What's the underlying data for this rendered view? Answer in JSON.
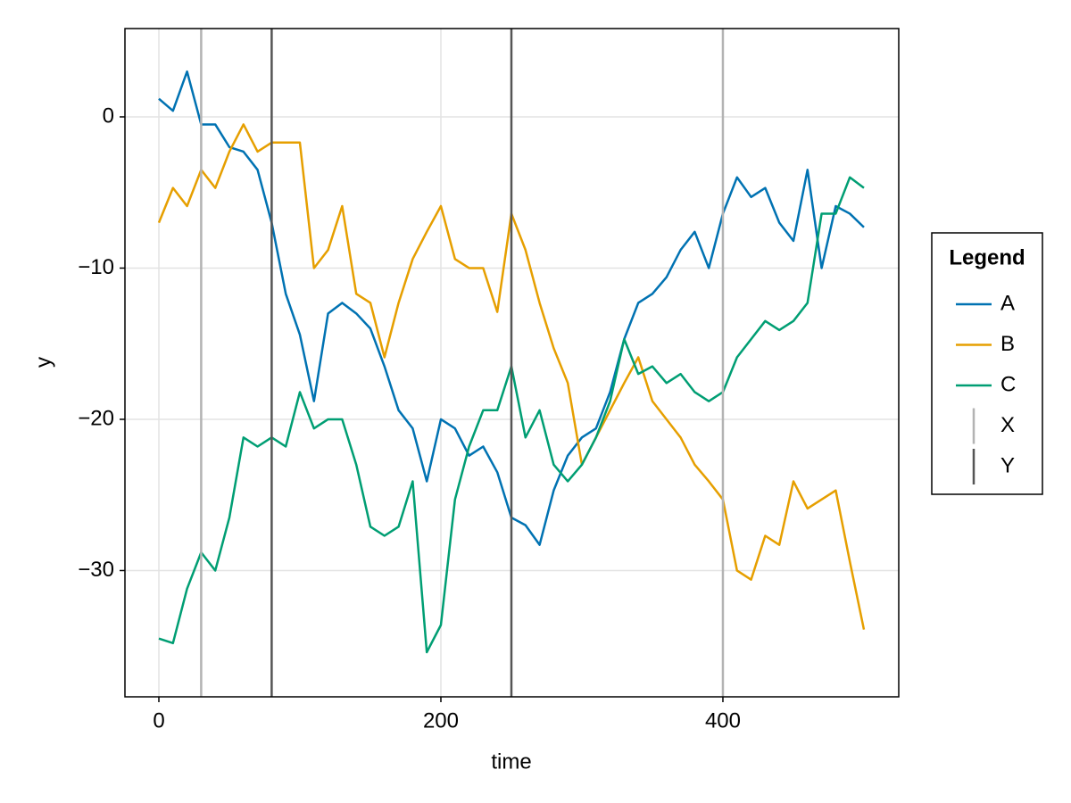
{
  "chart_data": {
    "type": "line",
    "xlabel": "time",
    "ylabel": "y",
    "legend_title": "Legend",
    "legend": "right",
    "grid": true,
    "xlim": [
      -24.05,
      524.7
    ],
    "ylim": [
      -38.35,
      5.84
    ],
    "xticks": [
      0,
      200,
      400
    ],
    "yticks": [
      {
        "value": -30,
        "label": "−30"
      },
      {
        "value": -20,
        "label": "−20"
      },
      {
        "value": -10,
        "label": "−10"
      },
      0
    ],
    "x": [
      0,
      10,
      20,
      30,
      40,
      50,
      60,
      70,
      80,
      90,
      100,
      110,
      120,
      130,
      140,
      150,
      160,
      170,
      180,
      190,
      200,
      210,
      220,
      230,
      240,
      250,
      260,
      270,
      280,
      290,
      300,
      310,
      320,
      330,
      340,
      350,
      360,
      370,
      380,
      390,
      400,
      410,
      420,
      430,
      440,
      450,
      460,
      470,
      480,
      490,
      500
    ],
    "series": [
      {
        "name": "A",
        "color": "#0072b2",
        "values": [
          1.2,
          0.4,
          3,
          -0.5,
          -0.5,
          -2,
          -2.3,
          -3.5,
          -7,
          -11.7,
          -14.4,
          -18.8,
          -13,
          -12.3,
          -13,
          -14,
          -16.5,
          -19.4,
          -20.6,
          -24.1,
          -20,
          -20.6,
          -22.4,
          -21.8,
          -23.5,
          -26.5,
          -27,
          -28.3,
          -24.7,
          -22.4,
          -21.2,
          -20.6,
          -18.2,
          -14.7,
          -12.3,
          -11.7,
          -10.6,
          -8.8,
          -7.6,
          -10,
          -6.4,
          -4,
          -5.3,
          -4.7,
          -7,
          -8.2,
          -3.5,
          -10,
          -5.9,
          -6.4,
          -7.3
        ]
      },
      {
        "name": "B",
        "color": "#e69f00",
        "values": [
          -7,
          -4.7,
          -5.9,
          -3.5,
          -4.7,
          -2.3,
          -0.5,
          -2.3,
          -1.7,
          -1.7,
          -1.7,
          -10,
          -8.8,
          -5.9,
          -11.7,
          -12.3,
          -15.9,
          -12.3,
          -9.4,
          -7.6,
          -5.9,
          -9.4,
          -10,
          -10,
          -12.9,
          -6.4,
          -8.8,
          -12.3,
          -15.3,
          -17.6,
          -23,
          -21.2,
          -19.4,
          -17.6,
          -15.9,
          -18.8,
          -20,
          -21.2,
          -23,
          -24.1,
          -25.3,
          -30,
          -30.6,
          -27.7,
          -28.3,
          -24.1,
          -25.9,
          -25.3,
          -24.7,
          -29.4,
          -33.9
        ]
      },
      {
        "name": "C",
        "color": "#009e73",
        "values": [
          -34.5,
          -34.8,
          -31.2,
          -28.8,
          -30,
          -26.5,
          -21.2,
          -21.8,
          -21.2,
          -21.8,
          -18.2,
          -20.6,
          -20,
          -20,
          -23,
          -27.1,
          -27.7,
          -27.1,
          -24.1,
          -35.4,
          -33.6,
          -25.3,
          -21.8,
          -19.4,
          -19.4,
          -16.5,
          -21.2,
          -19.4,
          -23,
          -24.1,
          -23,
          -21.2,
          -18.8,
          -14.7,
          -17,
          -16.5,
          -17.6,
          -17,
          -18.2,
          -18.8,
          -18.2,
          -15.9,
          -14.7,
          -13.5,
          -14.1,
          -13.5,
          -12.3,
          -6.4,
          -6.4,
          -4,
          -4.7
        ]
      }
    ],
    "vlines": [
      {
        "name": "X",
        "color": "#b3b3b3",
        "x": [
          30,
          400
        ]
      },
      {
        "name": "Y",
        "color": "#555555",
        "x": [
          80,
          250
        ]
      }
    ]
  }
}
